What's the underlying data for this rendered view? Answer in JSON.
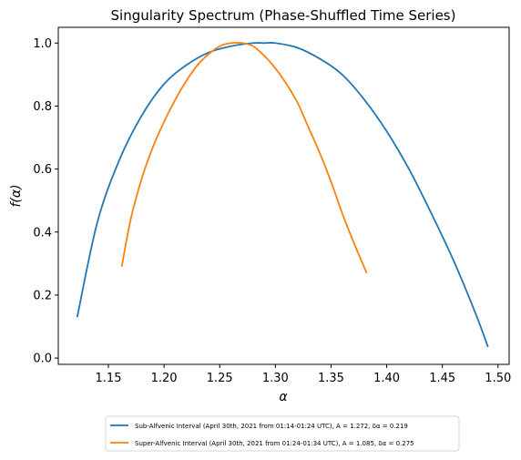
{
  "chart_data": {
    "type": "line",
    "title": "Singularity Spectrum (Phase-Shuffled Time Series)",
    "xlabel": "α",
    "ylabel": "f(α)",
    "xlim": [
      1.105,
      1.51
    ],
    "ylim": [
      -0.02,
      1.05
    ],
    "xticks": [
      "1.15",
      "1.20",
      "1.25",
      "1.30",
      "1.35",
      "1.40",
      "1.45",
      "1.50"
    ],
    "yticks": [
      "0.0",
      "0.2",
      "0.4",
      "0.6",
      "0.8",
      "1.0"
    ],
    "grid": false,
    "legend_position": "below-center",
    "series": [
      {
        "name": "Sub-Alfvenic Interval (April 30th, 2021 from 01:14-01:24 UTC), A = 1.272, δα = 0.219",
        "color": "#1f77b4",
        "x": [
          1.122,
          1.14,
          1.16,
          1.18,
          1.2,
          1.22,
          1.24,
          1.26,
          1.28,
          1.29,
          1.3,
          1.32,
          1.34,
          1.36,
          1.38,
          1.4,
          1.42,
          1.44,
          1.46,
          1.48,
          1.491
        ],
        "y": [
          0.13,
          0.43,
          0.63,
          0.77,
          0.87,
          0.93,
          0.97,
          0.99,
          1.0,
          1.0,
          1.0,
          0.985,
          0.95,
          0.9,
          0.82,
          0.72,
          0.6,
          0.46,
          0.31,
          0.14,
          0.035
        ]
      },
      {
        "name": "Super-Alfvenic Interval (April 30th, 2021 from 01:24-01:34 UTC), A = 1.085, δα = 0.275",
        "color": "#ff7f0e",
        "x": [
          1.162,
          1.17,
          1.18,
          1.19,
          1.2,
          1.21,
          1.22,
          1.23,
          1.24,
          1.25,
          1.26,
          1.27,
          1.28,
          1.29,
          1.3,
          1.31,
          1.32,
          1.33,
          1.34,
          1.35,
          1.36,
          1.37,
          1.382
        ],
        "y": [
          0.29,
          0.44,
          0.57,
          0.67,
          0.75,
          0.82,
          0.88,
          0.93,
          0.965,
          0.99,
          1.0,
          1.0,
          0.99,
          0.96,
          0.92,
          0.87,
          0.81,
          0.73,
          0.65,
          0.56,
          0.46,
          0.37,
          0.27
        ]
      }
    ]
  }
}
